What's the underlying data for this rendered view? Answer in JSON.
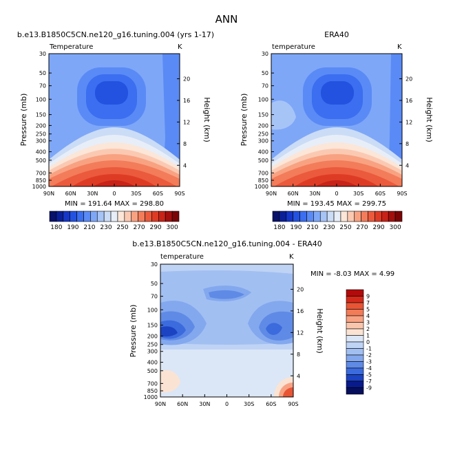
{
  "page": {
    "title": "ANN"
  },
  "chart_data": [
    {
      "type": "contour",
      "title": "b.e13.B1850C5CN.ne120_g16.tuning.004 (yrs 1-17)",
      "subtitle_left": "Temperature",
      "subtitle_right": "K",
      "xticks": [
        "90N",
        "60N",
        "30N",
        "0",
        "30S",
        "60S",
        "90S"
      ],
      "ylabel": "Pressure (mb)",
      "yticks": [
        "30",
        "50",
        "70",
        "100",
        "150",
        "200",
        "250",
        "300",
        "400",
        "500",
        "700",
        "850",
        "1000"
      ],
      "y2label": "Height (km)",
      "y2ticks": [
        "20",
        "16",
        "12",
        "8",
        "4"
      ],
      "stats": "MIN = 191.64   MAX = 298.80",
      "colorbar_labels": [
        "180",
        "190",
        "210",
        "230",
        "250",
        "270",
        "290",
        "300"
      ]
    },
    {
      "type": "contour",
      "title": "ERA40",
      "subtitle_left": "temperature",
      "subtitle_right": "K",
      "xticks": [
        "90N",
        "60N",
        "30N",
        "0",
        "30S",
        "60S",
        "90S"
      ],
      "ylabel": "Pressure (mb)",
      "yticks": [
        "30",
        "50",
        "70",
        "100",
        "150",
        "200",
        "250",
        "300",
        "400",
        "500",
        "700",
        "850",
        "1000"
      ],
      "y2label": "Height (km)",
      "y2ticks": [
        "20",
        "16",
        "12",
        "8",
        "4"
      ],
      "stats": "MIN = 193.45   MAX = 299.75",
      "colorbar_labels": [
        "180",
        "190",
        "210",
        "230",
        "250",
        "270",
        "290",
        "300"
      ]
    },
    {
      "type": "contour",
      "title": "b.e13.B1850C5CN.ne120_g16.tuning.004 - ERA40",
      "subtitle_left": "temperature",
      "subtitle_right": "K",
      "xticks": [
        "90N",
        "60N",
        "30N",
        "0",
        "30S",
        "60S",
        "90S"
      ],
      "ylabel": "Pressure (mb)",
      "yticks": [
        "30",
        "50",
        "70",
        "100",
        "150",
        "200",
        "250",
        "300",
        "400",
        "500",
        "700",
        "850",
        "1000"
      ],
      "y2label": "Height (km)",
      "y2ticks": [
        "20",
        "16",
        "12",
        "8",
        "4"
      ],
      "stats": "MIN =   -8.03   MAX =    4.99",
      "colorbar_labels": [
        "9",
        "7",
        "5",
        "4",
        "3",
        "2",
        "1",
        "0",
        "-1",
        "-2",
        "-3",
        "-4",
        "-5",
        "-7",
        "-9"
      ]
    }
  ],
  "colors": {
    "temperature_scale": [
      "#08126b",
      "#0b1f99",
      "#1536c7",
      "#2352e0",
      "#3b6ef0",
      "#5a8af5",
      "#7ea7f8",
      "#a7c4f7",
      "#cbdcf6",
      "#e8eef8",
      "#fbe6d8",
      "#fbc9b2",
      "#f8a282",
      "#f37c5a",
      "#eb5a3c",
      "#de3b25",
      "#c82318",
      "#a30f0d",
      "#7a0406"
    ],
    "difference_scale": [
      "#b30b0b",
      "#d42a1c",
      "#e85535",
      "#f27b58",
      "#f7a383",
      "#f9c6ad",
      "#fbe3d3",
      "#dbe7f7",
      "#bfd3f5",
      "#a2bff2",
      "#83a8ee",
      "#5f8be6",
      "#3b6bdd",
      "#1c43c2",
      "#081a8c",
      "#060f5c"
    ]
  }
}
